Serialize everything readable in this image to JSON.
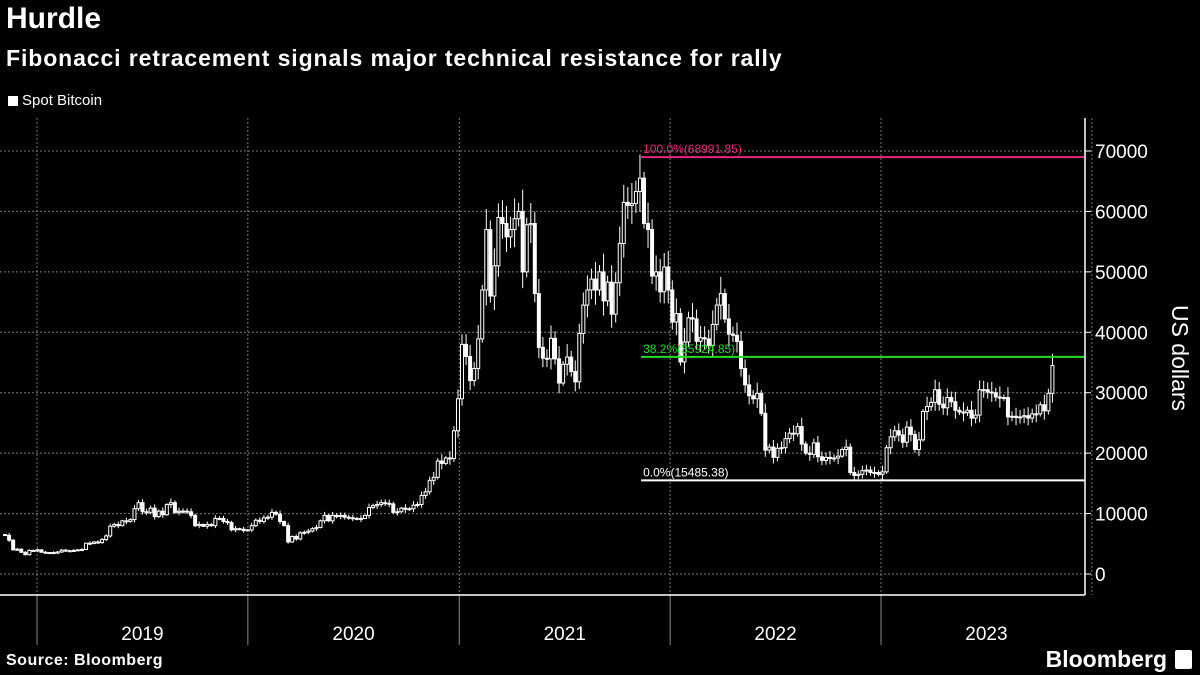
{
  "title": "Hurdle",
  "subtitle": "Fibonacci retracement signals major technical resistance for rally",
  "legend": "Spot Bitcoin",
  "source": "Source: Bloomberg",
  "logo": "Bloomberg",
  "colors": {
    "background": "#000000",
    "candles": "#ffffff",
    "fib_100": "#e8287f",
    "fib_382": "#22dd22",
    "fib_0": "#ffffff",
    "grid": "#777777"
  },
  "chart_data": {
    "type": "candlestick",
    "title": "Hurdle",
    "subtitle": "Fibonacci retracement signals major technical resistance for rally",
    "ylabel": "US dollars",
    "xlabel": "",
    "ylim": [
      -3000,
      75000
    ],
    "yticks": [
      0,
      10000,
      20000,
      30000,
      40000,
      50000,
      60000,
      70000
    ],
    "ytick_labels": [
      "0",
      "10000",
      "20000",
      "30000",
      "40000",
      "50000",
      "60000",
      "70000"
    ],
    "xticks": [
      "2019",
      "2020",
      "2021",
      "2022",
      "2023"
    ],
    "grid": true,
    "legend_position": "top-left",
    "series": [
      {
        "name": "Spot Bitcoin",
        "frequency": "weekly",
        "x_start": "2018-11-05",
        "close": [
          6400,
          5600,
          4000,
          4100,
          3600,
          3200,
          3900,
          3800,
          4000,
          3600,
          3550,
          3550,
          3450,
          3650,
          3950,
          3800,
          3850,
          3900,
          4000,
          4050,
          5100,
          5050,
          5300,
          5200,
          5700,
          6300,
          7900,
          8200,
          8000,
          8800,
          8700,
          9000,
          10800,
          11800,
          10300,
          10200,
          10900,
          9500,
          10400,
          9800,
          11500,
          11800,
          10200,
          10400,
          10400,
          10300,
          9700,
          8000,
          8200,
          7900,
          8200,
          8000,
          9200,
          9200,
          8700,
          8500,
          7300,
          7500,
          7400,
          7200,
          7300,
          8000,
          8900,
          8700,
          9300,
          9400,
          10200,
          9900,
          8700,
          8000,
          5300,
          6200,
          5800,
          6800,
          6900,
          7100,
          7500,
          7700,
          8800,
          9700,
          8800,
          9700,
          9500,
          9700,
          9400,
          9300,
          9200,
          9100,
          9200,
          9700,
          11000,
          11300,
          11500,
          11800,
          11700,
          11600,
          10200,
          10300,
          10900,
          10700,
          10800,
          11400,
          11500,
          13000,
          13600,
          15500,
          16000,
          18700,
          18300,
          19200,
          19100,
          23700,
          29000,
          38000,
          36000,
          32000,
          34000,
          38900,
          47000,
          57000,
          46000,
          51000,
          59000,
          58000,
          55800,
          57000,
          58800,
          60000,
          50000,
          57800,
          58000,
          46400,
          37500,
          35700,
          35600,
          39000,
          35600,
          31600,
          34700,
          35900,
          33500,
          31800,
          39800,
          44500,
          47000,
          48800,
          47000,
          50000,
          45200,
          48300,
          43000,
          48200,
          54700,
          61500,
          61000,
          61300,
          63300,
          65500,
          58000,
          57000,
          49300,
          50000,
          46700,
          50800,
          47000,
          41700,
          43100,
          35100,
          38400,
          42400,
          42200,
          38500,
          39100,
          38900,
          37800,
          41300,
          44500,
          46400,
          42200,
          39700,
          39500,
          38500,
          34000,
          31300,
          29500,
          29000,
          29900,
          26600,
          20500,
          21000,
          19300,
          20800,
          20900,
          22400,
          23300,
          23200,
          24400,
          21500,
          20000,
          19800,
          21700,
          19400,
          18800,
          19300,
          19100,
          19200,
          19500,
          20600,
          21000,
          16800,
          16300,
          16500,
          17100,
          17200,
          16800,
          16800,
          16500,
          16900,
          20900,
          22700,
          23700,
          23000,
          21800,
          24300,
          23100,
          20600,
          22200,
          26900,
          27700,
          28400,
          30500,
          28100,
          27500,
          29200,
          28500,
          27100,
          26800,
          26700,
          27100,
          25800,
          26300,
          30500,
          30500,
          30100,
          30000,
          29300,
          29100,
          29200,
          26000,
          26100,
          25900,
          26000,
          26200,
          25800,
          26500,
          26500,
          28000,
          27000,
          29900,
          34500
        ]
      }
    ],
    "annotations": [
      {
        "label": "100.0%(68991.85)",
        "value": 68991.85,
        "color": "#e8287f"
      },
      {
        "label": "38.2%(35924.85)",
        "value": 35924.85,
        "color": "#22dd22"
      },
      {
        "label": "0.0%(15485.38)",
        "value": 15485.38,
        "color": "#ffffff"
      }
    ]
  }
}
